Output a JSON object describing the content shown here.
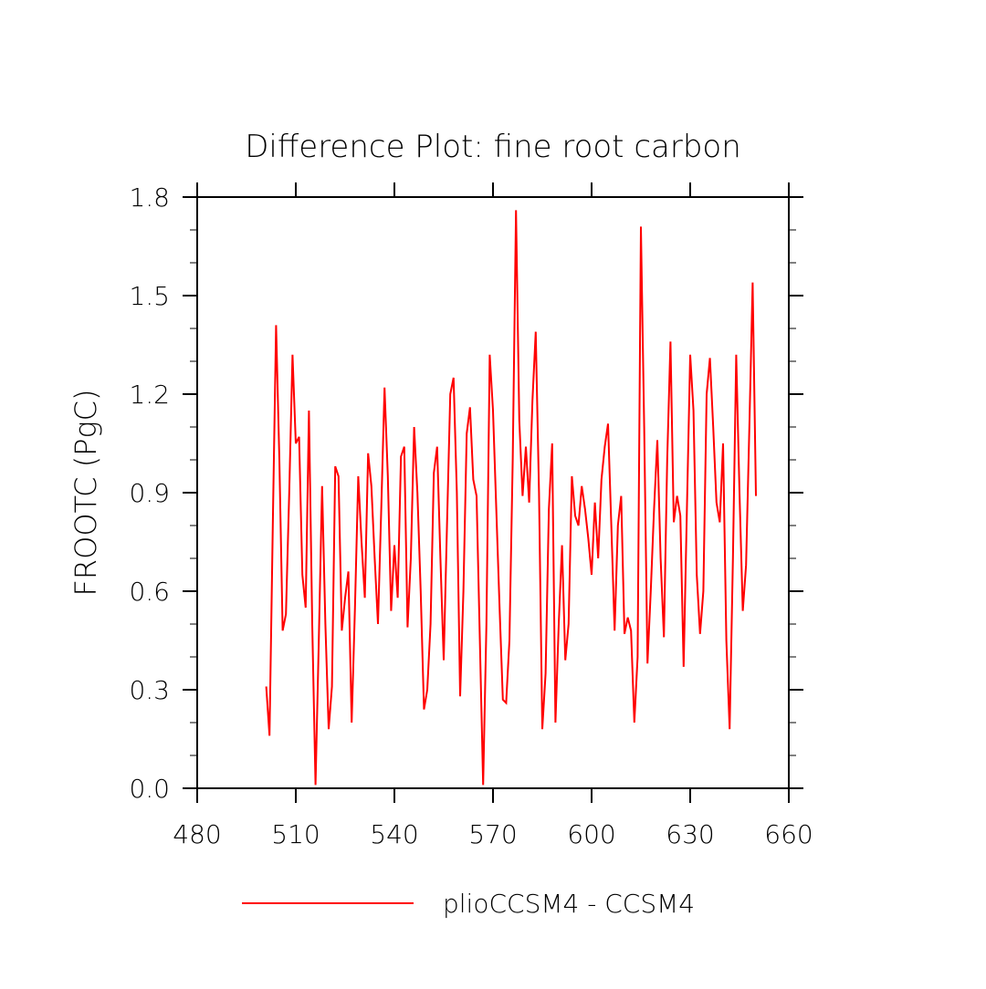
{
  "chart_data": {
    "type": "line",
    "title": "Difference Plot: fine root carbon",
    "y_label": "FROOTC  (PgC)",
    "x": [
      501,
      502,
      503,
      504,
      505,
      506,
      507,
      508,
      509,
      510,
      511,
      512,
      513,
      514,
      515,
      516,
      517,
      518,
      519,
      520,
      521,
      522,
      523,
      524,
      525,
      526,
      527,
      528,
      529,
      530,
      531,
      532,
      533,
      534,
      535,
      536,
      537,
      538,
      539,
      540,
      541,
      542,
      543,
      544,
      545,
      546,
      547,
      548,
      549,
      550,
      551,
      552,
      553,
      554,
      555,
      556,
      557,
      558,
      559,
      560,
      561,
      562,
      563,
      564,
      565,
      566,
      567,
      568,
      569,
      570,
      571,
      572,
      573,
      574,
      575,
      576,
      577,
      578,
      579,
      580,
      581,
      582,
      583,
      584,
      585,
      586,
      587,
      588,
      589,
      590,
      591,
      592,
      593,
      594,
      595,
      596,
      597,
      598,
      599,
      600,
      601,
      602,
      603,
      604,
      605,
      606,
      607,
      608,
      609,
      610,
      611,
      612,
      613,
      614,
      615,
      616,
      617,
      618,
      619,
      620,
      621,
      622,
      623,
      624,
      625,
      626,
      627,
      628,
      629,
      630,
      631,
      632,
      633,
      634,
      635,
      636,
      637,
      638,
      639,
      640,
      641,
      642,
      643,
      644,
      645,
      646,
      647,
      648,
      649,
      650
    ],
    "series": [
      {
        "name": "plioCCSM4 - CCSM4",
        "color": "#ff0000",
        "values": [
          0.31,
          0.16,
          0.8,
          1.41,
          1.0,
          0.48,
          0.53,
          0.9,
          1.32,
          1.05,
          1.07,
          0.65,
          0.55,
          1.15,
          0.5,
          0.01,
          0.45,
          0.92,
          0.5,
          0.18,
          0.31,
          0.98,
          0.95,
          0.48,
          0.58,
          0.66,
          0.2,
          0.55,
          0.95,
          0.75,
          0.58,
          1.02,
          0.92,
          0.7,
          0.5,
          0.85,
          1.22,
          0.95,
          0.54,
          0.74,
          0.58,
          1.01,
          1.04,
          0.49,
          0.7,
          1.1,
          0.9,
          0.6,
          0.24,
          0.3,
          0.5,
          0.96,
          1.04,
          0.7,
          0.39,
          0.8,
          1.2,
          1.25,
          0.9,
          0.28,
          0.6,
          1.08,
          1.16,
          0.94,
          0.89,
          0.45,
          0.01,
          0.5,
          1.32,
          1.15,
          0.85,
          0.55,
          0.27,
          0.26,
          0.45,
          1.0,
          1.76,
          1.12,
          0.89,
          1.04,
          0.87,
          1.18,
          1.39,
          0.9,
          0.18,
          0.35,
          0.85,
          1.05,
          0.2,
          0.5,
          0.74,
          0.39,
          0.5,
          0.95,
          0.83,
          0.8,
          0.92,
          0.85,
          0.76,
          0.65,
          0.87,
          0.7,
          0.94,
          1.04,
          1.11,
          0.8,
          0.48,
          0.8,
          0.89,
          0.47,
          0.52,
          0.48,
          0.2,
          0.4,
          1.71,
          1.1,
          0.38,
          0.6,
          0.85,
          1.06,
          0.7,
          0.46,
          1.0,
          1.36,
          0.81,
          0.89,
          0.83,
          0.37,
          0.85,
          1.32,
          1.15,
          0.65,
          0.47,
          0.6,
          1.2,
          1.31,
          1.1,
          0.87,
          0.81,
          1.05,
          0.45,
          0.18,
          0.7,
          1.32,
          0.9,
          0.54,
          0.68,
          1.1,
          1.54,
          0.89
        ]
      }
    ],
    "xlim": [
      480,
      660
    ],
    "xticks": [
      480,
      510,
      540,
      570,
      600,
      630,
      660
    ],
    "ylim": [
      0,
      1.8
    ],
    "yticks": [
      {
        "value": 0,
        "label": "0.0"
      },
      0.3,
      0.6,
      0.9,
      1.2,
      1.5,
      1.8
    ],
    "y_minor_ticks": [
      0.1,
      0.2,
      0.4,
      0.5,
      0.7,
      0.8,
      1.0,
      1.1,
      1.3,
      1.4,
      1.6,
      1.7
    ],
    "legend": "bottom"
  }
}
